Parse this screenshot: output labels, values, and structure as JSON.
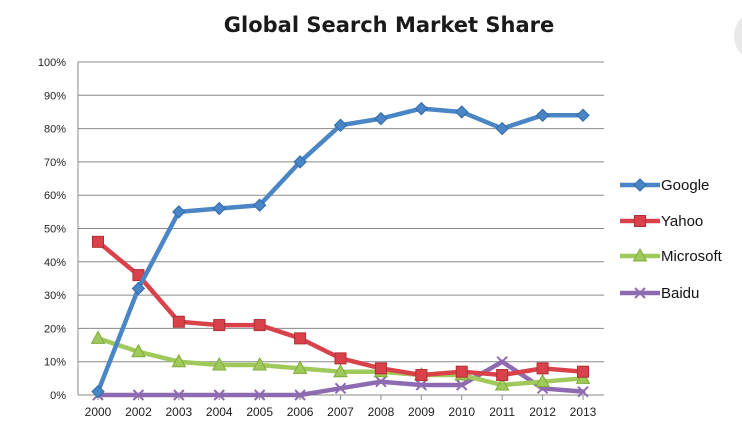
{
  "chart_data": {
    "type": "line",
    "title": "Global Search Market Share",
    "xlabel": "",
    "ylabel": "",
    "categories": [
      "2000",
      "2002",
      "2003",
      "2004",
      "2005",
      "2006",
      "2007",
      "2008",
      "2009",
      "2010",
      "2011",
      "2012",
      "2013"
    ],
    "ylim": [
      0,
      100
    ],
    "yticks": [
      "0%",
      "10%",
      "20%",
      "30%",
      "40%",
      "50%",
      "60%",
      "70%",
      "80%",
      "90%",
      "100%"
    ],
    "grid": true,
    "legend_position": "right",
    "series": [
      {
        "name": "Google",
        "color": "#4a86c5",
        "edge": "#2f6aa8",
        "marker": "diamond",
        "values": [
          1,
          32,
          55,
          56,
          57,
          70,
          81,
          83,
          86,
          85,
          80,
          84,
          84
        ]
      },
      {
        "name": "Yahoo",
        "color": "#d9424a",
        "edge": "#b02e35",
        "marker": "square",
        "values": [
          46,
          36,
          22,
          21,
          21,
          17,
          11,
          8,
          6,
          7,
          6,
          8,
          7
        ]
      },
      {
        "name": "Microsoft",
        "color": "#9fc95a",
        "edge": "#7fab3c",
        "marker": "triangle",
        "values": [
          17,
          13,
          10,
          9,
          9,
          8,
          7,
          7,
          6,
          6,
          3,
          4,
          5
        ]
      },
      {
        "name": "Baidu",
        "color": "#8e6bb0",
        "edge": "#6f4f93",
        "marker": "x",
        "values": [
          0,
          0,
          0,
          0,
          0,
          0,
          2,
          4,
          3,
          3,
          10,
          2,
          1
        ]
      }
    ]
  }
}
